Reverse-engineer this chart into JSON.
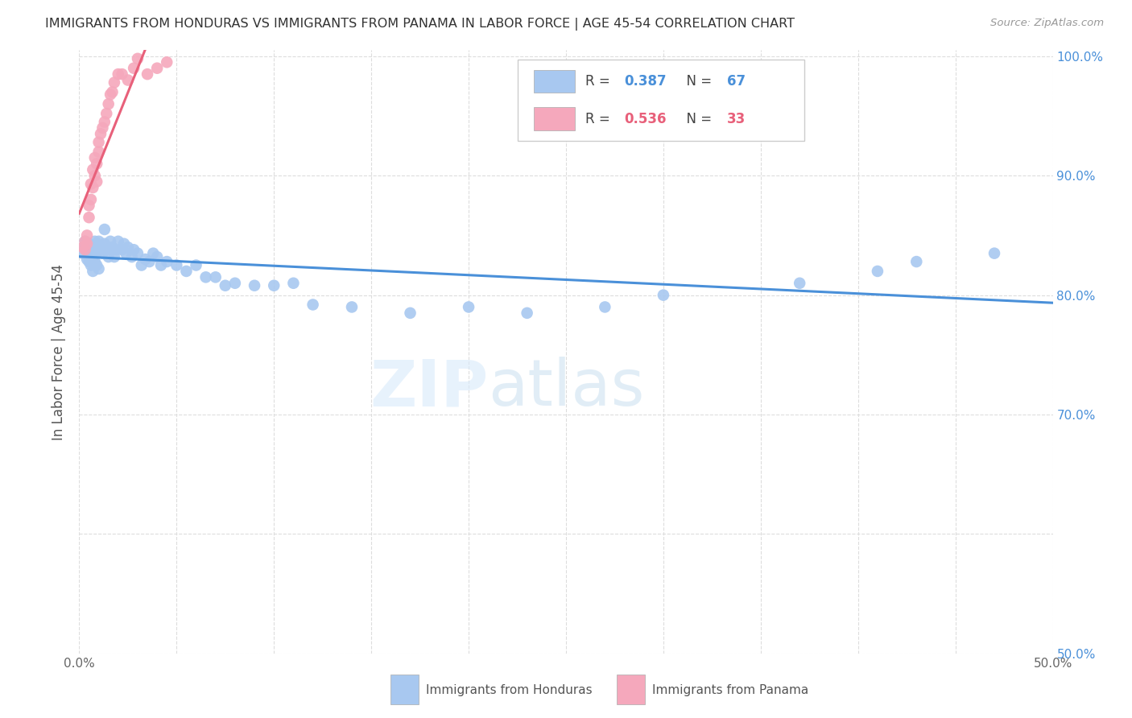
{
  "title": "IMMIGRANTS FROM HONDURAS VS IMMIGRANTS FROM PANAMA IN LABOR FORCE | AGE 45-54 CORRELATION CHART",
  "source": "Source: ZipAtlas.com",
  "ylabel": "In Labor Force | Age 45-54",
  "xlim": [
    0.0,
    0.5
  ],
  "ylim": [
    0.5,
    1.005
  ],
  "xticks": [
    0.0,
    0.05,
    0.1,
    0.15,
    0.2,
    0.25,
    0.3,
    0.35,
    0.4,
    0.45,
    0.5
  ],
  "xticklabels": [
    "0.0%",
    "",
    "",
    "",
    "",
    "",
    "",
    "",
    "",
    "",
    "50.0%"
  ],
  "yticks": [
    0.5,
    0.6,
    0.7,
    0.8,
    0.9,
    1.0
  ],
  "yticklabels_right": [
    "50.0%",
    "",
    "70.0%",
    "80.0%",
    "90.0%",
    "100.0%"
  ],
  "blue_color": "#A8C8F0",
  "pink_color": "#F5A8BC",
  "blue_line_color": "#4A90D9",
  "pink_line_color": "#E8607A",
  "r1_color": "#4A90D9",
  "r2_color": "#E8607A",
  "background_color": "#FFFFFF",
  "grid_color": "#DDDDDD",
  "honduras_x": [
    0.002,
    0.003,
    0.003,
    0.004,
    0.004,
    0.005,
    0.005,
    0.005,
    0.006,
    0.006,
    0.006,
    0.007,
    0.007,
    0.007,
    0.008,
    0.008,
    0.009,
    0.009,
    0.01,
    0.01,
    0.01,
    0.011,
    0.012,
    0.013,
    0.013,
    0.014,
    0.015,
    0.016,
    0.017,
    0.018,
    0.019,
    0.02,
    0.022,
    0.023,
    0.024,
    0.025,
    0.027,
    0.028,
    0.03,
    0.032,
    0.034,
    0.036,
    0.038,
    0.04,
    0.042,
    0.045,
    0.05,
    0.055,
    0.06,
    0.065,
    0.07,
    0.075,
    0.08,
    0.09,
    0.1,
    0.11,
    0.12,
    0.14,
    0.17,
    0.2,
    0.23,
    0.27,
    0.3,
    0.37,
    0.41,
    0.43,
    0.47
  ],
  "honduras_y": [
    0.835,
    0.84,
    0.845,
    0.838,
    0.83,
    0.843,
    0.835,
    0.828,
    0.842,
    0.835,
    0.825,
    0.84,
    0.832,
    0.82,
    0.845,
    0.828,
    0.838,
    0.825,
    0.845,
    0.837,
    0.822,
    0.84,
    0.835,
    0.855,
    0.843,
    0.838,
    0.832,
    0.845,
    0.84,
    0.832,
    0.838,
    0.845,
    0.838,
    0.843,
    0.835,
    0.84,
    0.832,
    0.838,
    0.835,
    0.825,
    0.83,
    0.828,
    0.835,
    0.832,
    0.825,
    0.828,
    0.825,
    0.82,
    0.825,
    0.815,
    0.815,
    0.808,
    0.81,
    0.808,
    0.808,
    0.81,
    0.792,
    0.79,
    0.785,
    0.79,
    0.785,
    0.79,
    0.8,
    0.81,
    0.82,
    0.828,
    0.835
  ],
  "panama_x": [
    0.002,
    0.003,
    0.003,
    0.004,
    0.004,
    0.005,
    0.005,
    0.006,
    0.006,
    0.007,
    0.007,
    0.008,
    0.008,
    0.009,
    0.009,
    0.01,
    0.01,
    0.011,
    0.012,
    0.013,
    0.014,
    0.015,
    0.016,
    0.017,
    0.018,
    0.02,
    0.022,
    0.025,
    0.028,
    0.03,
    0.035,
    0.04,
    0.045
  ],
  "panama_y": [
    0.84,
    0.838,
    0.845,
    0.85,
    0.843,
    0.865,
    0.875,
    0.88,
    0.893,
    0.89,
    0.905,
    0.915,
    0.9,
    0.91,
    0.895,
    0.92,
    0.928,
    0.935,
    0.94,
    0.945,
    0.952,
    0.96,
    0.968,
    0.97,
    0.978,
    0.985,
    0.985,
    0.98,
    0.99,
    0.998,
    0.985,
    0.99,
    0.995
  ],
  "legend_r1": "0.387",
  "legend_n1": "67",
  "legend_r2": "0.536",
  "legend_n2": "33"
}
